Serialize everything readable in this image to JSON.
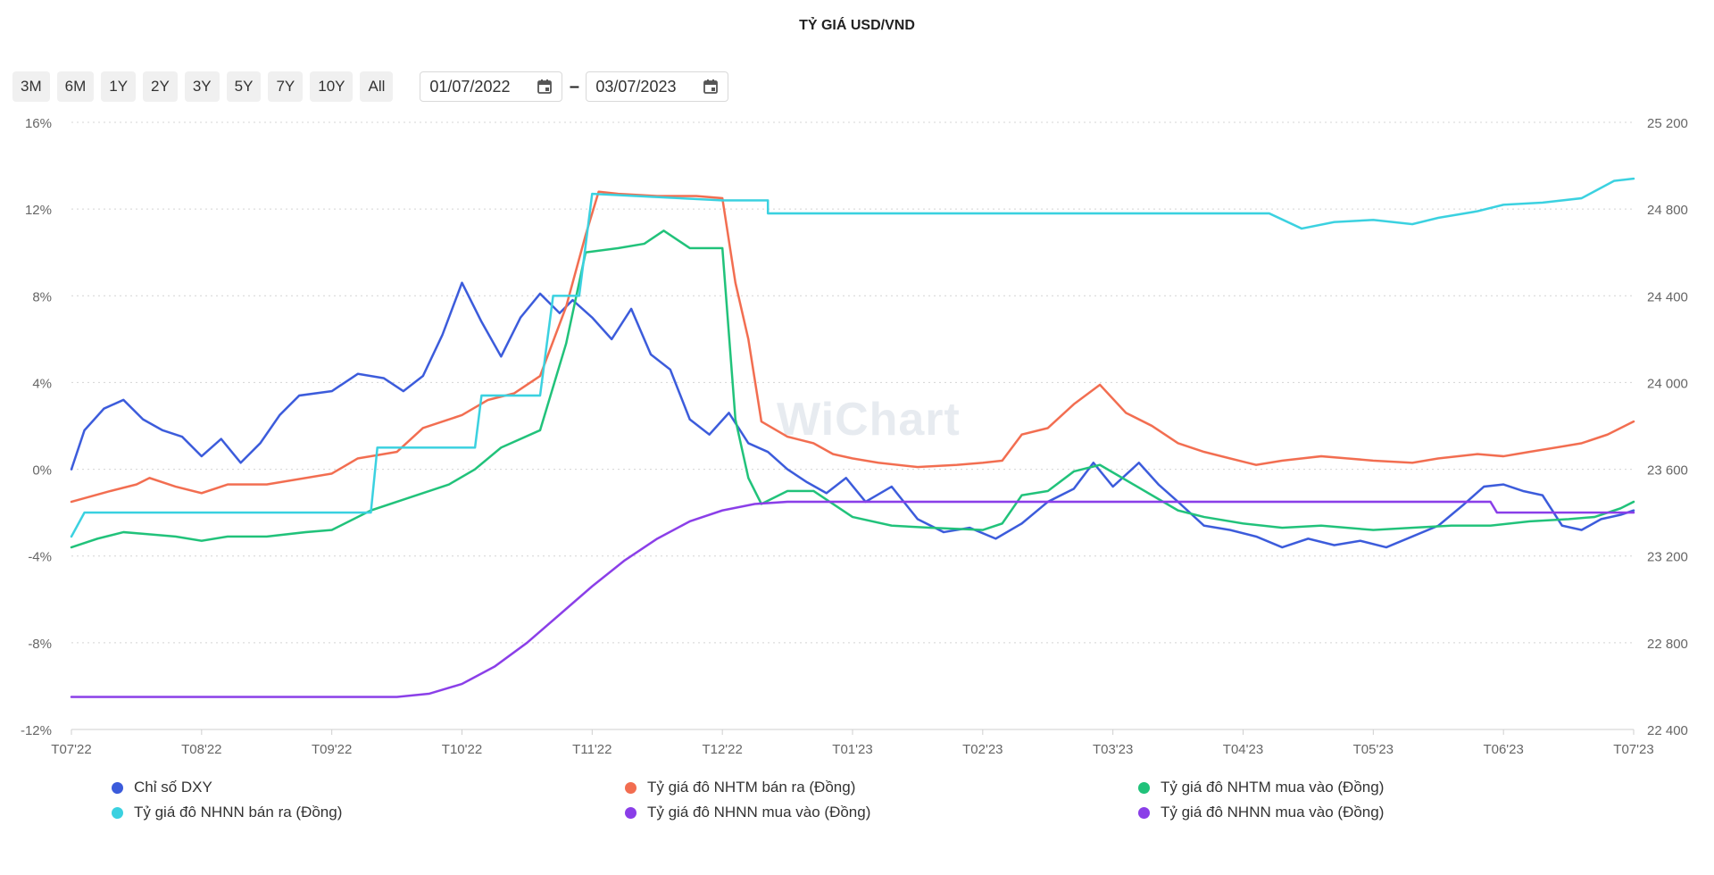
{
  "toolbar": {
    "ranges": [
      "3M",
      "6M",
      "1Y",
      "2Y",
      "3Y",
      "5Y",
      "7Y",
      "10Y",
      "All"
    ],
    "date_from": "01/07/2022",
    "date_to": "03/07/2023",
    "separator": "–"
  },
  "watermark": "WiChart",
  "chart_data": {
    "type": "line",
    "title": "TỶ GIÁ USD/VND",
    "x_ticks": [
      "T07'22",
      "T08'22",
      "T09'22",
      "T10'22",
      "T11'22",
      "T12'22",
      "T01'23",
      "T02'23",
      "T03'23",
      "T04'23",
      "T05'23",
      "T06'23",
      "T07'23"
    ],
    "y_left": {
      "ticks": [
        "16%",
        "12%",
        "8%",
        "4%",
        "0%",
        "-4%",
        "-8%",
        "-12%"
      ],
      "range": [
        -12,
        16
      ],
      "unit": "%"
    },
    "y_right": {
      "ticks": [
        "25 200",
        "24 800",
        "24 400",
        "24 000",
        "23 600",
        "23 200",
        "22 800",
        "22 400"
      ],
      "range": [
        22400,
        25200
      ]
    },
    "grid": true,
    "legend_position": "bottom",
    "series": [
      {
        "name": "Chỉ số DXY",
        "axis": "left",
        "color": "#3b5bdb",
        "points": [
          [
            0,
            0
          ],
          [
            0.1,
            1.8
          ],
          [
            0.25,
            2.8
          ],
          [
            0.4,
            3.2
          ],
          [
            0.55,
            2.3
          ],
          [
            0.7,
            1.8
          ],
          [
            0.85,
            1.5
          ],
          [
            1.0,
            0.6
          ],
          [
            1.15,
            1.4
          ],
          [
            1.3,
            0.3
          ],
          [
            1.45,
            1.2
          ],
          [
            1.6,
            2.5
          ],
          [
            1.75,
            3.4
          ],
          [
            2.0,
            3.6
          ],
          [
            2.2,
            4.4
          ],
          [
            2.4,
            4.2
          ],
          [
            2.55,
            3.6
          ],
          [
            2.7,
            4.3
          ],
          [
            2.85,
            6.2
          ],
          [
            3.0,
            8.6
          ],
          [
            3.15,
            6.8
          ],
          [
            3.3,
            5.2
          ],
          [
            3.45,
            7.0
          ],
          [
            3.6,
            8.1
          ],
          [
            3.75,
            7.2
          ],
          [
            3.85,
            7.8
          ],
          [
            4.0,
            7.0
          ],
          [
            4.15,
            6.0
          ],
          [
            4.3,
            7.4
          ],
          [
            4.45,
            5.3
          ],
          [
            4.6,
            4.6
          ],
          [
            4.75,
            2.3
          ],
          [
            4.9,
            1.6
          ],
          [
            5.05,
            2.6
          ],
          [
            5.2,
            1.2
          ],
          [
            5.35,
            0.8
          ],
          [
            5.5,
            0.0
          ],
          [
            5.65,
            -0.6
          ],
          [
            5.8,
            -1.1
          ],
          [
            5.95,
            -0.4
          ],
          [
            6.1,
            -1.5
          ],
          [
            6.3,
            -0.8
          ],
          [
            6.5,
            -2.3
          ],
          [
            6.7,
            -2.9
          ],
          [
            6.9,
            -2.7
          ],
          [
            7.1,
            -3.2
          ],
          [
            7.3,
            -2.5
          ],
          [
            7.5,
            -1.5
          ],
          [
            7.7,
            -0.9
          ],
          [
            7.85,
            0.3
          ],
          [
            8.0,
            -0.8
          ],
          [
            8.2,
            0.3
          ],
          [
            8.35,
            -0.7
          ],
          [
            8.5,
            -1.5
          ],
          [
            8.7,
            -2.6
          ],
          [
            8.9,
            -2.8
          ],
          [
            9.1,
            -3.1
          ],
          [
            9.3,
            -3.6
          ],
          [
            9.5,
            -3.2
          ],
          [
            9.7,
            -3.5
          ],
          [
            9.9,
            -3.3
          ],
          [
            10.1,
            -3.6
          ],
          [
            10.3,
            -3.1
          ],
          [
            10.5,
            -2.6
          ],
          [
            10.7,
            -1.6
          ],
          [
            10.85,
            -0.8
          ],
          [
            11.0,
            -0.7
          ],
          [
            11.15,
            -1.0
          ],
          [
            11.3,
            -1.2
          ],
          [
            11.45,
            -2.6
          ],
          [
            11.6,
            -2.8
          ],
          [
            11.75,
            -2.3
          ],
          [
            11.9,
            -2.1
          ],
          [
            12.0,
            -1.9
          ]
        ]
      },
      {
        "name": "Tỷ giá đô NHTM bán ra (Đồng)",
        "axis": "right",
        "color": "#f26d50",
        "points": [
          [
            0,
            23450
          ],
          [
            0.3,
            23500
          ],
          [
            0.5,
            23530
          ],
          [
            0.6,
            23560
          ],
          [
            0.8,
            23520
          ],
          [
            1.0,
            23490
          ],
          [
            1.2,
            23530
          ],
          [
            1.5,
            23530
          ],
          [
            1.8,
            23560
          ],
          [
            2.0,
            23580
          ],
          [
            2.2,
            23650
          ],
          [
            2.5,
            23680
          ],
          [
            2.7,
            23790
          ],
          [
            3.0,
            23850
          ],
          [
            3.2,
            23920
          ],
          [
            3.4,
            23950
          ],
          [
            3.6,
            24030
          ],
          [
            3.8,
            24350
          ],
          [
            3.95,
            24680
          ],
          [
            4.05,
            24880
          ],
          [
            4.2,
            24870
          ],
          [
            4.5,
            24860
          ],
          [
            4.8,
            24860
          ],
          [
            5.0,
            24850
          ],
          [
            5.1,
            24460
          ],
          [
            5.2,
            24200
          ],
          [
            5.3,
            23820
          ],
          [
            5.5,
            23750
          ],
          [
            5.7,
            23720
          ],
          [
            5.85,
            23670
          ],
          [
            6.0,
            23650
          ],
          [
            6.2,
            23630
          ],
          [
            6.5,
            23610
          ],
          [
            6.8,
            23620
          ],
          [
            7.0,
            23630
          ],
          [
            7.15,
            23640
          ],
          [
            7.3,
            23760
          ],
          [
            7.5,
            23790
          ],
          [
            7.7,
            23900
          ],
          [
            7.9,
            23990
          ],
          [
            8.1,
            23860
          ],
          [
            8.3,
            23800
          ],
          [
            8.5,
            23720
          ],
          [
            8.7,
            23680
          ],
          [
            8.9,
            23650
          ],
          [
            9.1,
            23620
          ],
          [
            9.3,
            23640
          ],
          [
            9.6,
            23660
          ],
          [
            9.8,
            23650
          ],
          [
            10.0,
            23640
          ],
          [
            10.3,
            23630
          ],
          [
            10.5,
            23650
          ],
          [
            10.8,
            23670
          ],
          [
            11.0,
            23660
          ],
          [
            11.2,
            23680
          ],
          [
            11.4,
            23700
          ],
          [
            11.6,
            23720
          ],
          [
            11.8,
            23760
          ],
          [
            12.0,
            23820
          ]
        ]
      },
      {
        "name": "Tỷ giá đô NHTM mua vào (Đồng)",
        "axis": "right",
        "color": "#20c27a",
        "points": [
          [
            0,
            23240
          ],
          [
            0.2,
            23280
          ],
          [
            0.4,
            23310
          ],
          [
            0.6,
            23300
          ],
          [
            0.8,
            23290
          ],
          [
            1.0,
            23270
          ],
          [
            1.2,
            23290
          ],
          [
            1.5,
            23290
          ],
          [
            1.8,
            23310
          ],
          [
            2.0,
            23320
          ],
          [
            2.3,
            23410
          ],
          [
            2.6,
            23470
          ],
          [
            2.9,
            23530
          ],
          [
            3.1,
            23600
          ],
          [
            3.3,
            23700
          ],
          [
            3.6,
            23780
          ],
          [
            3.8,
            24180
          ],
          [
            3.95,
            24600
          ],
          [
            4.2,
            24620
          ],
          [
            4.4,
            24640
          ],
          [
            4.55,
            24700
          ],
          [
            4.75,
            24620
          ],
          [
            5.0,
            24620
          ],
          [
            5.1,
            23830
          ],
          [
            5.2,
            23560
          ],
          [
            5.3,
            23440
          ],
          [
            5.5,
            23500
          ],
          [
            5.7,
            23500
          ],
          [
            6.0,
            23380
          ],
          [
            6.3,
            23340
          ],
          [
            6.6,
            23330
          ],
          [
            7.0,
            23320
          ],
          [
            7.15,
            23350
          ],
          [
            7.3,
            23480
          ],
          [
            7.5,
            23500
          ],
          [
            7.7,
            23590
          ],
          [
            7.9,
            23620
          ],
          [
            8.1,
            23550
          ],
          [
            8.3,
            23480
          ],
          [
            8.5,
            23410
          ],
          [
            8.7,
            23380
          ],
          [
            9.0,
            23350
          ],
          [
            9.3,
            23330
          ],
          [
            9.6,
            23340
          ],
          [
            10.0,
            23320
          ],
          [
            10.3,
            23330
          ],
          [
            10.6,
            23340
          ],
          [
            10.9,
            23340
          ],
          [
            11.2,
            23360
          ],
          [
            11.5,
            23370
          ],
          [
            11.7,
            23380
          ],
          [
            11.9,
            23420
          ],
          [
            12.0,
            23450
          ]
        ]
      },
      {
        "name": "Tỷ giá đô NHNN bán ra (Đồng)",
        "axis": "right",
        "color": "#3ad1e0",
        "points": [
          [
            0,
            23290
          ],
          [
            0.1,
            23400
          ],
          [
            2.3,
            23400
          ],
          [
            2.35,
            23700
          ],
          [
            3.1,
            23700
          ],
          [
            3.15,
            23940
          ],
          [
            3.6,
            23940
          ],
          [
            3.7,
            24400
          ],
          [
            3.9,
            24400
          ],
          [
            4.0,
            24870
          ],
          [
            5.0,
            24840
          ],
          [
            5.35,
            24840
          ],
          [
            5.35,
            24780
          ],
          [
            9.2,
            24780
          ],
          [
            9.45,
            24710
          ],
          [
            9.7,
            24740
          ],
          [
            10.0,
            24750
          ],
          [
            10.3,
            24730
          ],
          [
            10.5,
            24760
          ],
          [
            10.8,
            24790
          ],
          [
            11.0,
            24820
          ],
          [
            11.3,
            24830
          ],
          [
            11.6,
            24850
          ],
          [
            11.85,
            24930
          ],
          [
            12.0,
            24940
          ]
        ]
      },
      {
        "name": "Tỷ giá đô NHNN mua vào (Đồng)",
        "axis": "right",
        "color": "#8a3ee8",
        "points": [
          [
            0,
            22550
          ],
          [
            0.5,
            22550
          ],
          [
            1.0,
            22550
          ],
          [
            1.5,
            22550
          ],
          [
            2.0,
            22550
          ],
          [
            2.5,
            22550
          ],
          [
            2.75,
            22565
          ],
          [
            3.0,
            22610
          ],
          [
            3.25,
            22690
          ],
          [
            3.5,
            22800
          ],
          [
            3.75,
            22930
          ],
          [
            4.0,
            23060
          ],
          [
            4.25,
            23180
          ],
          [
            4.5,
            23280
          ],
          [
            4.75,
            23360
          ],
          [
            5.0,
            23410
          ],
          [
            5.25,
            23440
          ],
          [
            5.5,
            23450
          ],
          [
            6.0,
            23450
          ],
          [
            7.0,
            23450
          ],
          [
            8.0,
            23450
          ],
          [
            9.0,
            23450
          ],
          [
            10.0,
            23450
          ],
          [
            10.9,
            23450
          ],
          [
            10.95,
            23400
          ],
          [
            12.0,
            23400
          ]
        ]
      },
      {
        "name": "Tỷ giá đô NHNN mua vào (Đồng)",
        "axis": "right",
        "color": "#8a3ee8",
        "points": []
      }
    ]
  }
}
